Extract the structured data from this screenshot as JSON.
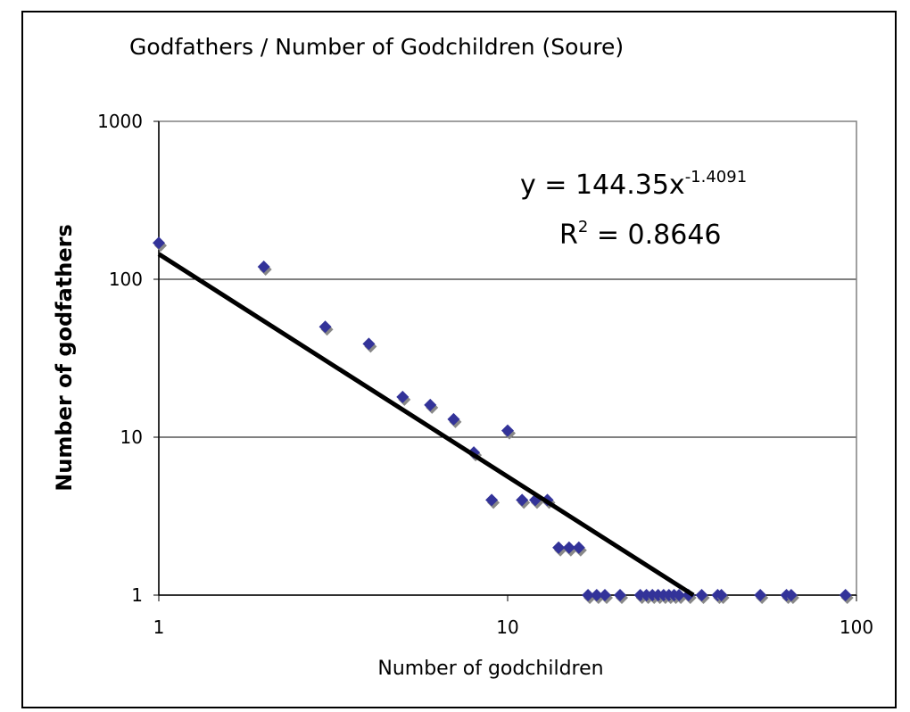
{
  "chart_data": {
    "type": "scatter",
    "title": "Godfathers / Number of Godchildren (Soure)",
    "xlabel": "Number of godchildren",
    "ylabel": "Number of godfathers",
    "xscale": "log",
    "yscale": "log",
    "xlim": [
      1,
      100
    ],
    "ylim": [
      1,
      1000
    ],
    "xticks": [
      "1",
      "10",
      "100"
    ],
    "yticks": [
      "1",
      "10",
      "100",
      "1000"
    ],
    "grid": "horizontal",
    "marker_color": "#333399",
    "points": [
      [
        1,
        170
      ],
      [
        2,
        120
      ],
      [
        3,
        50
      ],
      [
        4,
        39
      ],
      [
        5,
        18
      ],
      [
        6,
        16
      ],
      [
        7,
        13
      ],
      [
        8,
        8
      ],
      [
        9,
        4
      ],
      [
        10,
        11
      ],
      [
        11,
        4
      ],
      [
        12,
        4
      ],
      [
        13,
        4
      ],
      [
        14,
        2
      ],
      [
        15,
        2
      ],
      [
        16,
        2
      ],
      [
        17,
        1
      ],
      [
        18,
        1
      ],
      [
        19,
        1
      ],
      [
        21,
        1
      ],
      [
        24,
        1
      ],
      [
        25,
        1
      ],
      [
        26,
        1
      ],
      [
        27,
        1
      ],
      [
        28,
        1
      ],
      [
        29,
        1
      ],
      [
        30,
        1
      ],
      [
        31,
        1
      ],
      [
        33,
        1
      ],
      [
        36,
        1
      ],
      [
        40,
        1
      ],
      [
        41,
        1
      ],
      [
        53,
        1
      ],
      [
        63,
        1
      ],
      [
        65,
        1
      ],
      [
        93,
        1
      ]
    ],
    "trendline": {
      "type": "power",
      "a": 144.35,
      "b": -1.4091,
      "equation_prefix": "y = 144.35x",
      "equation_exponent": "-1.4091",
      "r2_prefix": "R",
      "r2_exponent": "2",
      "r2_suffix": " = 0.8646"
    }
  }
}
